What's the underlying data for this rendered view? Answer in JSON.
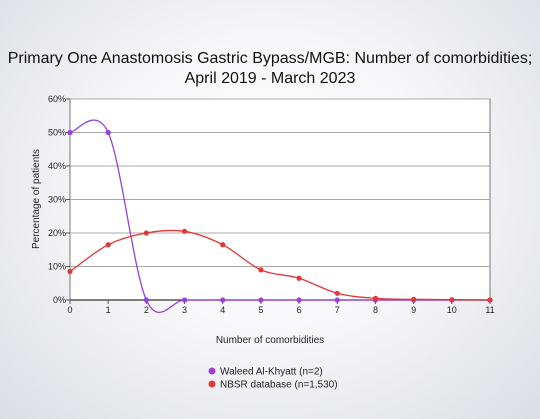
{
  "chart_data": {
    "type": "line",
    "title_lines": [
      "Primary One Anastomosis Gastric Bypass/MGB: Number of comorbidities;",
      "April 2019 - March 2023"
    ],
    "xlabel": "Number of comorbidities",
    "ylabel": "Percentage of patients",
    "x": [
      0,
      1,
      2,
      3,
      4,
      5,
      6,
      7,
      8,
      9,
      10,
      11
    ],
    "xlim": [
      0,
      11
    ],
    "ylim": [
      0,
      60
    ],
    "yticks": [
      0,
      10,
      20,
      30,
      40,
      50,
      60
    ],
    "ytick_suffix": "%",
    "grid": true,
    "legend_position": "bottom-center",
    "series": [
      {
        "name": "Waleed Al-Khyatt (n=2)",
        "color": "#9b3fd6",
        "values": [
          50,
          50,
          0,
          0,
          0,
          0,
          0,
          0,
          0,
          0,
          0,
          0
        ]
      },
      {
        "name": "NBSR database (n=1,530)",
        "color": "#e0373b",
        "values": [
          8.5,
          16.5,
          20,
          20.5,
          16.5,
          9,
          6.5,
          2,
          0.5,
          0.2,
          0.1,
          0
        ]
      }
    ]
  }
}
